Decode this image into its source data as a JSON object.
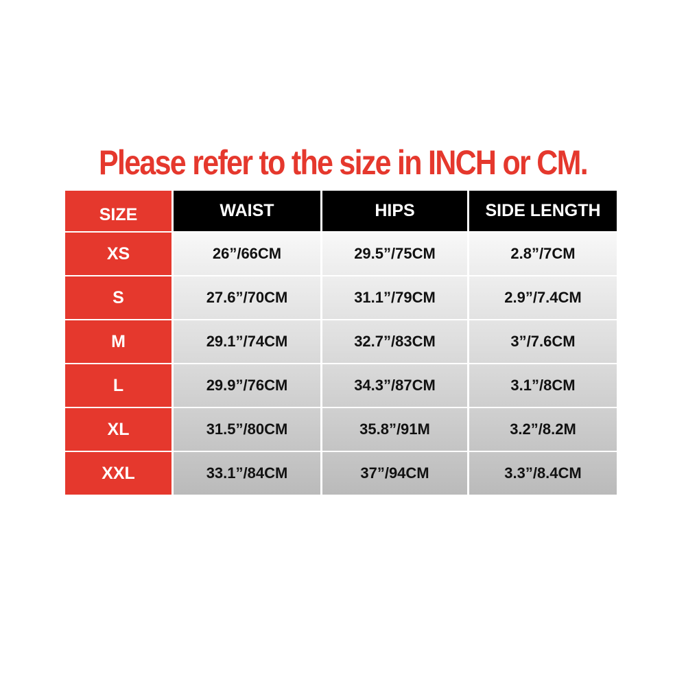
{
  "title": "Please refer to the size in INCH or CM.",
  "colors": {
    "accent_red": "#e5382d",
    "header_black": "#000000"
  },
  "table": {
    "headers": [
      "SIZE",
      "WAIST",
      "HIPS",
      "SIDE LENGTH"
    ],
    "rows": [
      [
        "XS",
        "26”/66CM",
        "29.5”/75CM",
        "2.8”/7CM"
      ],
      [
        "S",
        "27.6”/70CM",
        "31.1”/79CM",
        "2.9”/7.4CM"
      ],
      [
        "M",
        "29.1”/74CM",
        "32.7”/83CM",
        "3”/7.6CM"
      ],
      [
        "L",
        "29.9”/76CM",
        "34.3”/87CM",
        "3.1”/8CM"
      ],
      [
        "XL",
        "31.5”/80CM",
        "35.8”/91M",
        "3.2”/8.2M"
      ],
      [
        "XXL",
        "33.1”/84CM",
        "37”/94CM",
        "3.3”/8.4CM"
      ]
    ]
  }
}
